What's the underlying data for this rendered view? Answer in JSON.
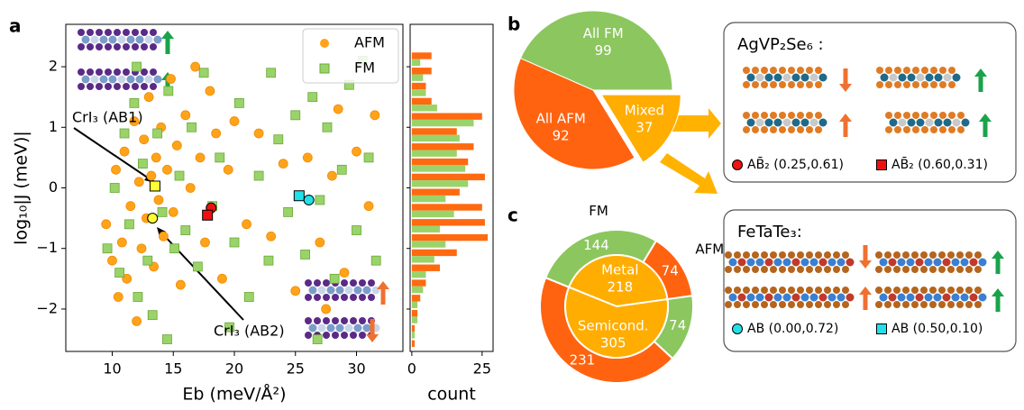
{
  "panels": [
    "a",
    "b",
    "c"
  ],
  "chart_data": [
    {
      "type": "scatter",
      "x_label": "Eb (meV/Å²)",
      "y_label": "log₁₀|J (meV)|",
      "xlim": [
        6.2,
        33.8
      ],
      "xticks": [
        10,
        15,
        20,
        25,
        30
      ],
      "ylim": [
        -2.7,
        2.7
      ],
      "yticks": [
        {
          "value": -2,
          "label": "−2"
        },
        {
          "value": -1,
          "label": "−1"
        },
        0,
        1,
        2
      ],
      "legend": "upper right",
      "series": [
        {
          "name": "AFM",
          "color": "#ffa31a",
          "marker": "circle",
          "x": [
            9.5,
            10,
            10.3,
            10.5,
            10.8,
            11,
            11.2,
            11.5,
            11.8,
            12,
            12.2,
            12.4,
            12.6,
            12.8,
            13,
            13.2,
            13.4,
            13.6,
            13.8,
            14,
            14.2,
            14.5,
            14.8,
            15,
            15.3,
            15.6,
            16,
            16.4,
            16.8,
            17.2,
            17.6,
            18,
            18.5,
            19,
            19.5,
            20,
            21,
            22,
            23,
            24,
            25,
            26,
            27,
            28,
            29,
            30,
            31,
            31.5,
            27.5,
            28.5
          ],
          "values": [
            -0.6,
            -1.2,
            0.3,
            -1.8,
            -0.9,
            0.6,
            -1.5,
            -0.3,
            1.1,
            -2.2,
            0.1,
            -1.0,
            0.8,
            -0.5,
            1.5,
            0.2,
            -1.3,
            0.5,
            -0.2,
            1.0,
            -0.8,
            0.3,
            1.8,
            -0.4,
            0.7,
            -1.6,
            1.2,
            0.0,
            2.0,
            0.5,
            -0.9,
            1.6,
            0.9,
            -1.5,
            0.3,
            1.1,
            -0.6,
            0.9,
            -0.8,
            0.4,
            -1.7,
            0.5,
            -0.9,
            0.2,
            -1.4,
            0.6,
            -0.3,
            1.2,
            -2.0,
            1.3
          ]
        },
        {
          "name": "FM",
          "color": "#9ad36a",
          "marker": "square",
          "x": [
            9.6,
            10.2,
            10.6,
            11,
            11.4,
            11.8,
            12.1,
            12.5,
            12.9,
            13.3,
            13.7,
            14.1,
            14.6,
            15.1,
            15.5,
            16,
            16.5,
            17,
            17.5,
            18.2,
            18.8,
            19.6,
            20.4,
            21.2,
            22,
            22.8,
            23.6,
            24.4,
            25,
            25.8,
            26.4,
            27,
            27.6,
            28.2,
            28.8,
            29.4,
            30,
            30.5,
            31,
            31.6,
            26.8,
            23,
            20,
            14.5,
            12
          ],
          "values": [
            -1.0,
            0.0,
            -1.4,
            0.9,
            -0.6,
            1.4,
            -1.8,
            0.4,
            -1.2,
            -2.1,
            0.9,
            -0.4,
            1.6,
            -1.0,
            0.2,
            -0.7,
            1.0,
            -1.3,
            1.9,
            -0.3,
            0.5,
            -2.3,
            1.4,
            -1.8,
            0.2,
            -1.2,
            0.8,
            -0.4,
            1.2,
            -1.1,
            1.5,
            -0.2,
            1.0,
            -1.5,
            0.3,
            1.7,
            -0.7,
            2.1,
            0.5,
            -1.2,
            -2.5,
            1.9,
            -0.9,
            -2.5,
            2.0
          ]
        }
      ],
      "highlights": [
        {
          "x": 13.5,
          "y": 0.03,
          "color": "#ffff33",
          "marker": "square"
        },
        {
          "x": 13.3,
          "y": -0.5,
          "color": "#ffff33",
          "marker": "circle"
        },
        {
          "x": 18.1,
          "y": -0.33,
          "color": "#ee1111",
          "marker": "circle"
        },
        {
          "x": 17.8,
          "y": -0.45,
          "color": "#ee1111",
          "marker": "square"
        },
        {
          "x": 25.3,
          "y": -0.13,
          "color": "#22e0e8",
          "marker": "square"
        },
        {
          "x": 26.1,
          "y": -0.2,
          "color": "#22e0e8",
          "marker": "circle"
        }
      ],
      "annotations": [
        "CrI₃ (AB1)",
        "CrI₃ (AB2)"
      ]
    },
    {
      "type": "histogram",
      "orientation": "horizontal",
      "x_label": "count",
      "xlim": [
        -0.6,
        28.9
      ],
      "xticks": [
        0,
        25
      ],
      "bins": [
        -2.75,
        -2.5,
        -2.25,
        -2,
        -1.75,
        -1.5,
        -1.25,
        -1,
        -0.75,
        -0.5,
        -0.25,
        0,
        0.25,
        0.5,
        0.75,
        1,
        1.25,
        1.5,
        1.75,
        2,
        2.25
      ],
      "series": [
        {
          "name": "AFM",
          "color": "#ff6a10",
          "values": [
            1,
            1,
            2,
            3,
            5,
            10,
            16,
            27,
            26,
            25,
            17,
            26,
            20,
            22,
            16,
            25,
            7,
            5,
            7,
            7
          ]
        },
        {
          "name": "FM",
          "color": "#9ad36a",
          "values": [
            0,
            1,
            2,
            2,
            4,
            5,
            8,
            12,
            10,
            15,
            12,
            20,
            19,
            16,
            17,
            22,
            9,
            5,
            4,
            3
          ]
        }
      ]
    },
    {
      "type": "pie",
      "start_angle": 0,
      "categories": [
        "All FM",
        "All AFM",
        "Mixed"
      ],
      "values": [
        99,
        92,
        37
      ],
      "colors": [
        "#8cc65e",
        "#ff6310",
        "#ffad00"
      ],
      "explode": [
        0,
        0,
        0.12
      ]
    },
    {
      "type": "donut",
      "start_angle": 8,
      "inner": {
        "categories": [
          "Metal",
          "Semicond."
        ],
        "values": [
          218,
          305
        ],
        "colors": [
          "#ffad00",
          "#ffad00"
        ]
      },
      "outer": {
        "categories": [
          "AFM",
          "FM",
          null,
          null
        ],
        "values": [
          74,
          144,
          231,
          74
        ],
        "colors": [
          "#ff6310",
          "#8cc65e",
          "#ff6310",
          "#8cc65e"
        ]
      }
    }
  ],
  "insets": [
    {
      "title": "AgVP₂Se₆ :",
      "items": [
        {
          "label": "AB̄₂ (0.25,0.61)",
          "marker": "circle",
          "color": "#ee1111"
        },
        {
          "label": "AB̄₂ (0.60,0.31)",
          "marker": "square",
          "color": "#ee1111"
        }
      ]
    },
    {
      "title": "FeTaTe₃:",
      "items": [
        {
          "label": "AB (0.00,0.72)",
          "marker": "circle",
          "color": "#22e0e8"
        },
        {
          "label": "AB (0.50,0.10)",
          "marker": "square",
          "color": "#22e0e8"
        }
      ]
    }
  ]
}
